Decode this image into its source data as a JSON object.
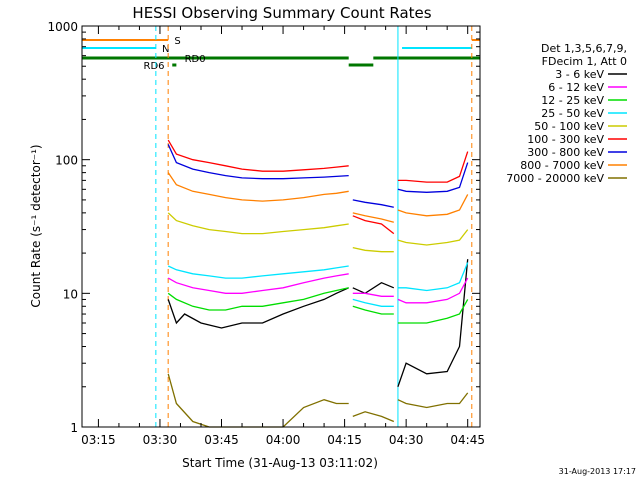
{
  "chart_data": {
    "type": "line",
    "title": "HESSI Observing Summary Count Rates",
    "xlabel": "Start Time (31-Aug-13 03:11:02)",
    "ylabel": "Count Rate (s⁻¹ detector⁻¹)",
    "yscale": "log",
    "ylim": [
      1,
      1000
    ],
    "xlim": [
      "03:11",
      "04:48"
    ],
    "x_ticks": [
      "03:15",
      "03:30",
      "03:45",
      "04:00",
      "04:15",
      "04:30",
      "04:45"
    ],
    "y_ticks": [
      "1",
      "10",
      "100",
      "1000"
    ],
    "timestamp": "31-Aug-2013 17:17",
    "legend": {
      "position": "right",
      "header": [
        "Det 1,3,5,6,7,9,",
        "FDecim 1, Att 0"
      ],
      "entries": [
        {
          "name": "3 - 6 keV",
          "color": "#000000"
        },
        {
          "name": "6 - 12 keV",
          "color": "#ff00ff"
        },
        {
          "name": "12 - 25 keV",
          "color": "#00dd00"
        },
        {
          "name": "25 - 50 keV",
          "color": "#00e5ff"
        },
        {
          "name": "50 - 100 keV",
          "color": "#cccc00"
        },
        {
          "name": "100 - 300 keV",
          "color": "#ff0000"
        },
        {
          "name": "300 - 800 keV",
          "color": "#0000dd"
        },
        {
          "name": "800 - 7000 keV",
          "color": "#ff8000"
        },
        {
          "name": "7000 - 20000 keV",
          "color": "#807000"
        }
      ]
    },
    "flag_labels": {
      "S": "S",
      "N": "N",
      "RD6": "RD6",
      "RD0": "RD0"
    },
    "series": [
      {
        "name": "3 - 6 keV",
        "color": "#000000",
        "segments": [
          {
            "x": [
              "03:32",
              "03:34",
              "03:36",
              "03:40",
              "03:45",
              "03:50",
              "03:55",
              "04:00",
              "04:05",
              "04:10",
              "04:13",
              "04:16"
            ],
            "y": [
              9,
              6,
              7,
              6,
              5.5,
              6,
              6,
              7,
              8,
              9,
              10,
              11
            ]
          },
          {
            "x": [
              "04:17",
              "04:20",
              "04:24",
              "04:27"
            ],
            "y": [
              11,
              10,
              12,
              11
            ]
          },
          {
            "x": [
              "04:28",
              "04:30",
              "04:35",
              "04:40",
              "04:43",
              "04:45"
            ],
            "y": [
              2,
              3,
              2.5,
              2.6,
              4,
              18
            ]
          }
        ]
      },
      {
        "name": "6 - 12 keV",
        "color": "#ff00ff",
        "segments": [
          {
            "x": [
              "03:32",
              "03:34",
              "03:38",
              "03:42",
              "03:46",
              "03:50",
              "03:55",
              "04:00",
              "04:05",
              "04:10",
              "04:13",
              "04:16"
            ],
            "y": [
              13,
              12,
              11,
              10.5,
              10,
              10,
              10.5,
              11,
              12,
              13,
              13.5,
              14
            ]
          },
          {
            "x": [
              "04:17",
              "04:20",
              "04:24",
              "04:27"
            ],
            "y": [
              10,
              10,
              9.5,
              9.5
            ]
          },
          {
            "x": [
              "04:28",
              "04:30",
              "04:35",
              "04:40",
              "04:43",
              "04:45"
            ],
            "y": [
              9,
              8.5,
              8.5,
              9,
              10,
              13
            ]
          }
        ]
      },
      {
        "name": "12 - 25 keV",
        "color": "#00dd00",
        "segments": [
          {
            "x": [
              "03:32",
              "03:34",
              "03:38",
              "03:42",
              "03:46",
              "03:50",
              "03:55",
              "04:00",
              "04:05",
              "04:10",
              "04:13",
              "04:16"
            ],
            "y": [
              10,
              9,
              8,
              7.5,
              7.5,
              8,
              8,
              8.5,
              9,
              10,
              10.5,
              11
            ]
          },
          {
            "x": [
              "04:17",
              "04:20",
              "04:24",
              "04:27"
            ],
            "y": [
              8,
              7.5,
              7,
              7
            ]
          },
          {
            "x": [
              "04:28",
              "04:30",
              "04:35",
              "04:40",
              "04:43",
              "04:45"
            ],
            "y": [
              6,
              6,
              6,
              6.5,
              7,
              9
            ]
          }
        ]
      },
      {
        "name": "25 - 50 keV",
        "color": "#00e5ff",
        "segments": [
          {
            "x": [
              "03:32",
              "03:34",
              "03:38",
              "03:42",
              "03:46",
              "03:50",
              "03:55",
              "04:00",
              "04:05",
              "04:10",
              "04:13",
              "04:16"
            ],
            "y": [
              16,
              15,
              14,
              13.5,
              13,
              13,
              13.5,
              14,
              14.5,
              15,
              15.5,
              16
            ]
          },
          {
            "x": [
              "04:17",
              "04:20",
              "04:24",
              "04:27"
            ],
            "y": [
              9,
              8.5,
              8,
              8
            ]
          },
          {
            "x": [
              "04:28",
              "04:30",
              "04:35",
              "04:40",
              "04:43",
              "04:45"
            ],
            "y": [
              11,
              11,
              10.5,
              11,
              12,
              17
            ]
          }
        ]
      },
      {
        "name": "50 - 100 keV",
        "color": "#cccc00",
        "segments": [
          {
            "x": [
              "03:32",
              "03:34",
              "03:38",
              "03:42",
              "03:46",
              "03:50",
              "03:55",
              "04:00",
              "04:05",
              "04:10",
              "04:13",
              "04:16"
            ],
            "y": [
              40,
              35,
              32,
              30,
              29,
              28,
              28,
              29,
              30,
              31,
              32,
              33
            ]
          },
          {
            "x": [
              "04:17",
              "04:20",
              "04:24",
              "04:27"
            ],
            "y": [
              22,
              21,
              20.5,
              20.5
            ]
          },
          {
            "x": [
              "04:28",
              "04:30",
              "04:35",
              "04:40",
              "04:43",
              "04:45"
            ],
            "y": [
              25,
              24,
              23,
              24,
              25,
              30
            ]
          }
        ]
      },
      {
        "name": "100 - 300 keV",
        "color": "#ff0000",
        "segments": [
          {
            "x": [
              "03:32",
              "03:34",
              "03:38",
              "03:42",
              "03:46",
              "03:50",
              "03:55",
              "04:00",
              "04:05",
              "04:10",
              "04:13",
              "04:16"
            ],
            "y": [
              140,
              110,
              100,
              95,
              90,
              85,
              82,
              82,
              84,
              86,
              88,
              90
            ]
          },
          {
            "x": [
              "04:17",
              "04:20",
              "04:24",
              "04:27"
            ],
            "y": [
              38,
              35,
              33,
              28
            ]
          },
          {
            "x": [
              "04:28",
              "04:30",
              "04:35",
              "04:40",
              "04:43",
              "04:45"
            ],
            "y": [
              70,
              70,
              68,
              68,
              75,
              115
            ]
          }
        ]
      },
      {
        "name": "300 - 800 keV",
        "color": "#0000dd",
        "segments": [
          {
            "x": [
              "03:32",
              "03:34",
              "03:38",
              "03:42",
              "03:46",
              "03:50",
              "03:55",
              "04:00",
              "04:05",
              "04:10",
              "04:13",
              "04:16"
            ],
            "y": [
              130,
              95,
              85,
              80,
              76,
              73,
              72,
              72,
              73,
              74,
              75,
              76
            ]
          },
          {
            "x": [
              "04:17",
              "04:20",
              "04:24",
              "04:27"
            ],
            "y": [
              50,
              48,
              46,
              44
            ]
          },
          {
            "x": [
              "04:28",
              "04:30",
              "04:35",
              "04:40",
              "04:43",
              "04:45"
            ],
            "y": [
              60,
              58,
              57,
              58,
              62,
              95
            ]
          }
        ]
      },
      {
        "name": "800 - 7000 keV",
        "color": "#ff8000",
        "segments": [
          {
            "x": [
              "03:32",
              "03:34",
              "03:38",
              "03:42",
              "03:46",
              "03:50",
              "03:55",
              "04:00",
              "04:05",
              "04:10",
              "04:13",
              "04:16"
            ],
            "y": [
              80,
              65,
              58,
              55,
              52,
              50,
              49,
              50,
              52,
              55,
              56,
              58
            ]
          },
          {
            "x": [
              "04:17",
              "04:20",
              "04:24",
              "04:27"
            ],
            "y": [
              40,
              38,
              36,
              34
            ]
          },
          {
            "x": [
              "04:28",
              "04:30",
              "04:35",
              "04:40",
              "04:43",
              "04:45"
            ],
            "y": [
              42,
              40,
              38,
              39,
              42,
              55
            ]
          }
        ]
      },
      {
        "name": "7000 - 20000 keV",
        "color": "#807000",
        "segments": [
          {
            "x": [
              "03:32",
              "03:34",
              "03:38",
              "03:42",
              "03:46",
              "03:50",
              "03:55",
              "04:00",
              "04:05",
              "04:10",
              "04:13",
              "04:16"
            ],
            "y": [
              2.5,
              1.5,
              1.1,
              1,
              1,
              1,
              1,
              1,
              1.4,
              1.6,
              1.5,
              1.5
            ]
          },
          {
            "x": [
              "04:17",
              "04:20",
              "04:24",
              "04:27"
            ],
            "y": [
              1.2,
              1.3,
              1.2,
              1.1
            ]
          },
          {
            "x": [
              "04:28",
              "04:30",
              "04:35",
              "04:40",
              "04:43",
              "04:45"
            ],
            "y": [
              1.6,
              1.5,
              1.4,
              1.5,
              1.5,
              1.8
            ]
          }
        ]
      }
    ]
  }
}
